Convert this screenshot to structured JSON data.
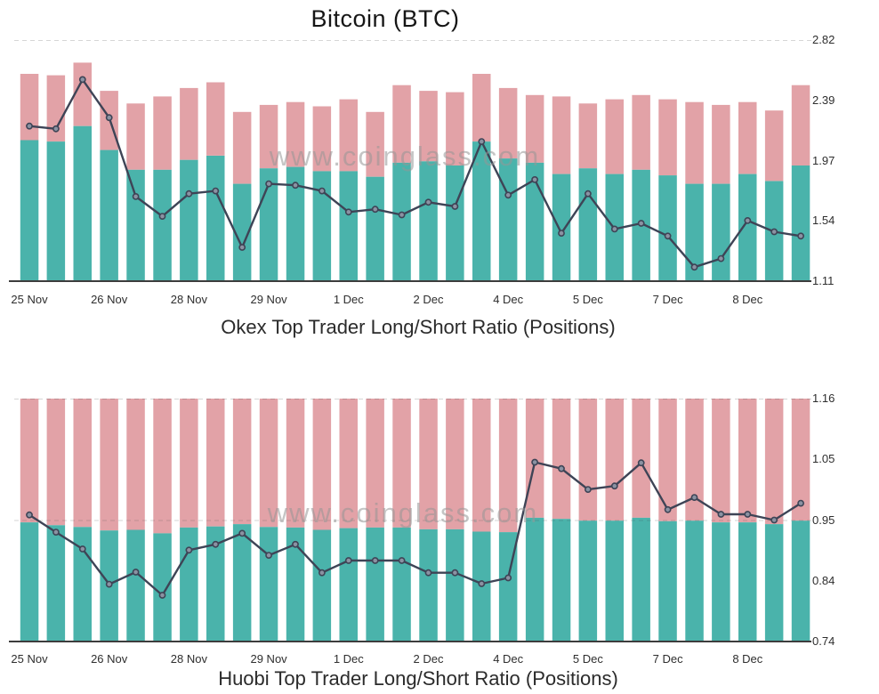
{
  "page": {
    "title": "Bitcoin (BTC)",
    "watermark": "www.coinglass.com"
  },
  "colors": {
    "long_bar": "#4ab3ab",
    "short_bar": "#e2a2a7",
    "ratio_line": "#3e4456",
    "ratio_point_fill": "#8b92a2",
    "axis_text": "#2e2e2e",
    "axis_line": "#3d3d3d",
    "grid_line": "rgba(70,70,70,0.22)"
  },
  "chart_data": [
    {
      "type": "stacked-bar+line",
      "exchange": "Okex",
      "title": "Okex Top Trader Long/Short Ratio (Positions)",
      "bar_count": 30,
      "y_axis_position": "right",
      "ylim": [
        1.11,
        2.82
      ],
      "y_ticks": [
        {
          "v": 2.82,
          "label": "2.82"
        },
        {
          "v": 2.3925,
          "label": "2.39"
        },
        {
          "v": 1.965,
          "label": "1.97"
        },
        {
          "v": 1.5375,
          "label": "1.54"
        },
        {
          "v": 1.11,
          "label": "1.11"
        }
      ],
      "gridlines": [
        2.82
      ],
      "x_ticks": [
        {
          "bar": 0,
          "label": "25 Nov"
        },
        {
          "bar": 3,
          "label": "26 Nov"
        },
        {
          "bar": 6,
          "label": "28 Nov"
        },
        {
          "bar": 9,
          "label": "29 Nov"
        },
        {
          "bar": 12,
          "label": "1 Dec"
        },
        {
          "bar": 15,
          "label": "2 Dec"
        },
        {
          "bar": 18,
          "label": "4 Dec"
        },
        {
          "bar": 21,
          "label": "5 Dec"
        },
        {
          "bar": 24,
          "label": "7 Dec"
        },
        {
          "bar": 27,
          "label": "8 Dec"
        }
      ],
      "series": {
        "stack_top": [
          2.58,
          2.57,
          2.66,
          2.46,
          2.37,
          2.42,
          2.48,
          2.52,
          2.31,
          2.36,
          2.38,
          2.35,
          2.4,
          2.31,
          2.5,
          2.46,
          2.45,
          2.58,
          2.48,
          2.43,
          2.42,
          2.37,
          2.4,
          2.43,
          2.4,
          2.38,
          2.36,
          2.38,
          2.32,
          2.5
        ],
        "long_top": [
          2.11,
          2.1,
          2.21,
          2.04,
          1.9,
          1.9,
          1.97,
          2.0,
          1.8,
          1.91,
          1.92,
          1.89,
          1.89,
          1.85,
          1.95,
          1.96,
          1.93,
          2.1,
          1.98,
          1.95,
          1.87,
          1.91,
          1.87,
          1.9,
          1.86,
          1.8,
          1.8,
          1.87,
          1.82,
          1.93
        ],
        "ratio": [
          2.21,
          2.19,
          2.54,
          2.27,
          1.71,
          1.57,
          1.73,
          1.75,
          1.35,
          1.8,
          1.79,
          1.75,
          1.6,
          1.62,
          1.58,
          1.67,
          1.64,
          2.1,
          1.72,
          1.83,
          1.45,
          1.73,
          1.48,
          1.52,
          1.43,
          1.21,
          1.27,
          1.54,
          1.46,
          1.43
        ]
      }
    },
    {
      "type": "stacked-bar+line",
      "exchange": "Huobi",
      "title": "Huobi Top Trader Long/Short Ratio (Positions)",
      "bar_count": 30,
      "y_axis_position": "right",
      "ylim": [
        0.74,
        1.16
      ],
      "y_ticks": [
        {
          "v": 1.16,
          "label": "1.16"
        },
        {
          "v": 1.055,
          "label": "1.05"
        },
        {
          "v": 0.95,
          "label": "0.95"
        },
        {
          "v": 0.845,
          "label": "0.84"
        },
        {
          "v": 0.74,
          "label": "0.74"
        }
      ],
      "gridlines": [
        1.16,
        0.95
      ],
      "x_ticks": [
        {
          "bar": 0,
          "label": "25 Nov"
        },
        {
          "bar": 3,
          "label": "26 Nov"
        },
        {
          "bar": 6,
          "label": "28 Nov"
        },
        {
          "bar": 9,
          "label": "29 Nov"
        },
        {
          "bar": 12,
          "label": "1 Dec"
        },
        {
          "bar": 15,
          "label": "2 Dec"
        },
        {
          "bar": 18,
          "label": "4 Dec"
        },
        {
          "bar": 21,
          "label": "5 Dec"
        },
        {
          "bar": 24,
          "label": "7 Dec"
        },
        {
          "bar": 27,
          "label": "8 Dec"
        }
      ],
      "series": {
        "stack_top": [
          1.16,
          1.16,
          1.16,
          1.16,
          1.16,
          1.16,
          1.16,
          1.16,
          1.16,
          1.16,
          1.16,
          1.16,
          1.16,
          1.16,
          1.16,
          1.16,
          1.16,
          1.16,
          1.16,
          1.16,
          1.16,
          1.16,
          1.16,
          1.16,
          1.16,
          1.16,
          1.16,
          1.16,
          1.16,
          1.16
        ],
        "long_top": [
          0.946,
          0.941,
          0.938,
          0.932,
          0.933,
          0.927,
          0.937,
          0.939,
          0.943,
          0.938,
          0.937,
          0.933,
          0.936,
          0.937,
          0.937,
          0.934,
          0.934,
          0.93,
          0.929,
          0.954,
          0.952,
          0.949,
          0.949,
          0.954,
          0.948,
          0.949,
          0.946,
          0.946,
          0.943,
          0.949
        ],
        "ratio": [
          0.959,
          0.929,
          0.9,
          0.839,
          0.86,
          0.82,
          0.898,
          0.908,
          0.927,
          0.889,
          0.908,
          0.859,
          0.88,
          0.88,
          0.88,
          0.859,
          0.859,
          0.84,
          0.85,
          1.05,
          1.039,
          1.003,
          1.009,
          1.049,
          0.968,
          0.989,
          0.96,
          0.96,
          0.95,
          0.979
        ]
      }
    }
  ]
}
